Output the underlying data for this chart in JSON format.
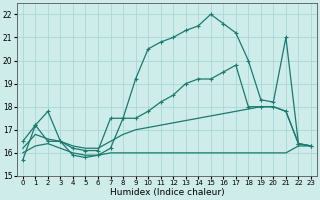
{
  "xlabel": "Humidex (Indice chaleur)",
  "x": [
    0,
    1,
    2,
    3,
    4,
    5,
    6,
    7,
    8,
    9,
    10,
    11,
    12,
    13,
    14,
    15,
    16,
    17,
    18,
    19,
    20,
    21,
    22,
    23
  ],
  "line1": [
    15.7,
    17.2,
    17.8,
    16.5,
    15.9,
    15.8,
    15.9,
    16.2,
    17.5,
    19.2,
    20.5,
    20.8,
    21.0,
    21.3,
    21.5,
    22.0,
    21.6,
    21.2,
    20.0,
    18.3,
    18.2,
    21.0,
    16.4,
    16.3
  ],
  "line2_with_markers": [
    16.5,
    17.2,
    16.5,
    16.5,
    16.2,
    16.1,
    16.1,
    17.5,
    17.5,
    17.5,
    17.8,
    18.2,
    18.5,
    19.0,
    19.2,
    19.2,
    19.5,
    19.8,
    18.0,
    18.0,
    18.0,
    17.8,
    16.4,
    16.3
  ],
  "line3_no_markers": [
    16.2,
    16.8,
    16.6,
    16.5,
    16.3,
    16.2,
    16.2,
    16.5,
    16.8,
    17.0,
    17.1,
    17.2,
    17.3,
    17.4,
    17.5,
    17.6,
    17.7,
    17.8,
    17.9,
    18.0,
    18.0,
    17.8,
    16.4,
    16.3
  ],
  "line4_flat": [
    16.0,
    16.3,
    16.4,
    16.2,
    16.0,
    15.9,
    15.9,
    16.0,
    16.0,
    16.0,
    16.0,
    16.0,
    16.0,
    16.0,
    16.0,
    16.0,
    16.0,
    16.0,
    16.0,
    16.0,
    16.0,
    16.0,
    16.3,
    16.3
  ],
  "line_color": "#1a7a6e",
  "bg_color": "#ceecea",
  "grid_color": "#a8d8d4",
  "ylim_min": 15,
  "ylim_max": 22.5,
  "yticks": [
    15,
    16,
    17,
    18,
    19,
    20,
    21,
    22
  ]
}
